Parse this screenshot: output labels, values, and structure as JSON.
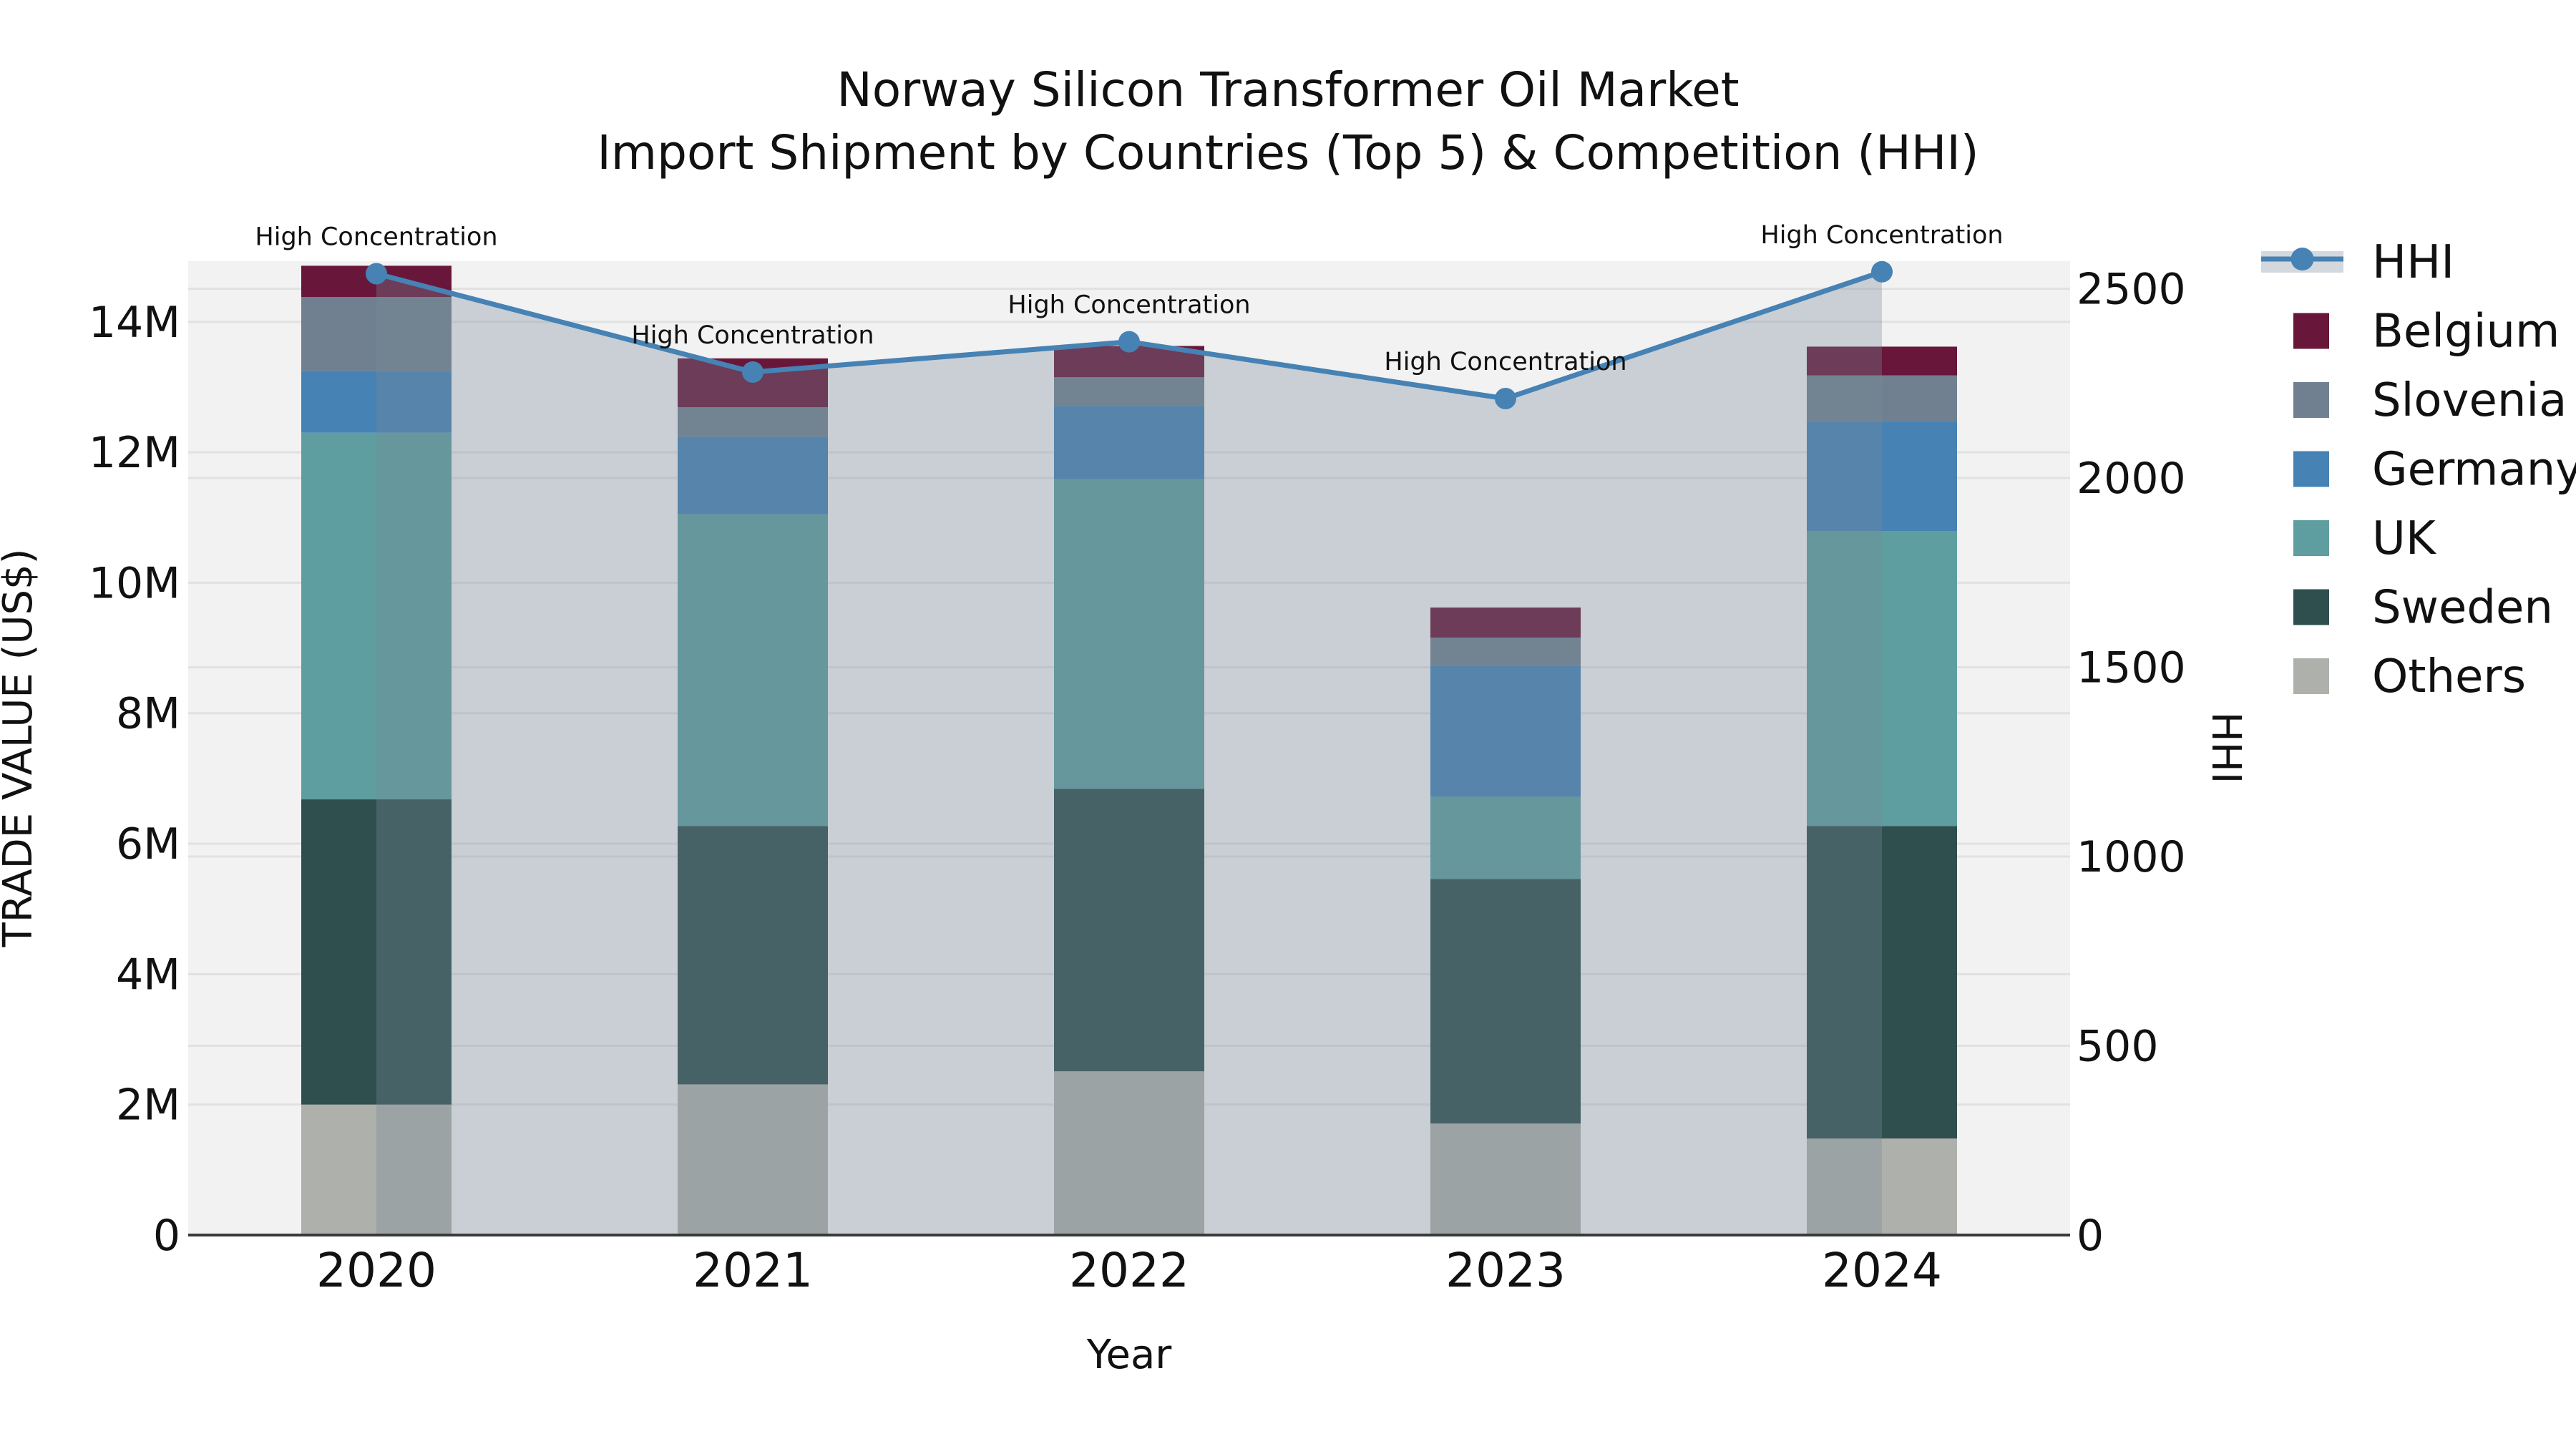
{
  "title": {
    "line1": "Norway Silicon Transformer Oil Market",
    "line2": "Import Shipment by Countries (Top 5) & Competition (HHI)"
  },
  "axes": {
    "x": {
      "label": "Year",
      "tick_labels": [
        "2020",
        "2021",
        "2022",
        "2023",
        "2024"
      ]
    },
    "y_left": {
      "label": "TRADE VALUE (US$)",
      "tick_labels": [
        "0",
        "2M",
        "4M",
        "6M",
        "8M",
        "10M",
        "12M",
        "14M"
      ],
      "tick_values_musd": [
        0,
        2,
        4,
        6,
        8,
        10,
        12,
        14
      ],
      "max_musd": 14.93
    },
    "y_right": {
      "label": "HHI",
      "tick_labels": [
        "0",
        "500",
        "1000",
        "1500",
        "2000",
        "2500"
      ],
      "tick_values": [
        0,
        500,
        1000,
        1500,
        2000,
        2500
      ],
      "max": 2573
    }
  },
  "chart_data": {
    "type": "bar",
    "stacked": true,
    "overlay_line": true,
    "grid": true,
    "categories": [
      "2020",
      "2021",
      "2022",
      "2023",
      "2024"
    ],
    "bar_unit": "million US$ (trade value)",
    "series": [
      {
        "name": "Others",
        "color": "#aeb0ac",
        "values": [
          2.0,
          2.31,
          2.51,
          1.71,
          1.48
        ]
      },
      {
        "name": "Sweden",
        "color": "#2f4f4f",
        "values": [
          4.68,
          3.96,
          4.33,
          3.75,
          4.79
        ]
      },
      {
        "name": "UK",
        "color": "#5f9ea0",
        "values": [
          5.62,
          4.78,
          4.75,
          1.26,
          4.52
        ]
      },
      {
        "name": "Germany",
        "color": "#4682b4",
        "values": [
          0.95,
          1.19,
          1.12,
          2.01,
          1.69
        ]
      },
      {
        "name": "Slovenia",
        "color": "#708090",
        "values": [
          1.13,
          0.45,
          0.44,
          0.43,
          0.7
        ]
      },
      {
        "name": "Belgium",
        "color": "#68173a",
        "values": [
          0.48,
          0.75,
          0.48,
          0.46,
          0.44
        ]
      }
    ],
    "bar_totals_musd": [
      14.86,
      13.44,
      13.63,
      9.62,
      13.62
    ],
    "line_series": {
      "name": "HHI",
      "axis": "right",
      "color": "#4682b4",
      "area_fill": "rgba(119,136,153,0.33)",
      "values": [
        2540,
        2280,
        2360,
        2210,
        2545
      ]
    },
    "annotations": [
      {
        "text": "High Concentration",
        "category": "2020"
      },
      {
        "text": "High Concentration",
        "category": "2021"
      },
      {
        "text": "High Concentration",
        "category": "2022"
      },
      {
        "text": "High Concentration",
        "category": "2023"
      },
      {
        "text": "High Concentration",
        "category": "2024"
      }
    ],
    "legend_position": "right",
    "legend_order": [
      "HHI",
      "Belgium",
      "Slovenia",
      "Germany",
      "UK",
      "Sweden",
      "Others"
    ]
  },
  "style_colors": {
    "plot_background": "#f2f2f2",
    "gridline": "#e1e1e1",
    "axis_spine": "#3a3a3a",
    "text": "#111111"
  }
}
